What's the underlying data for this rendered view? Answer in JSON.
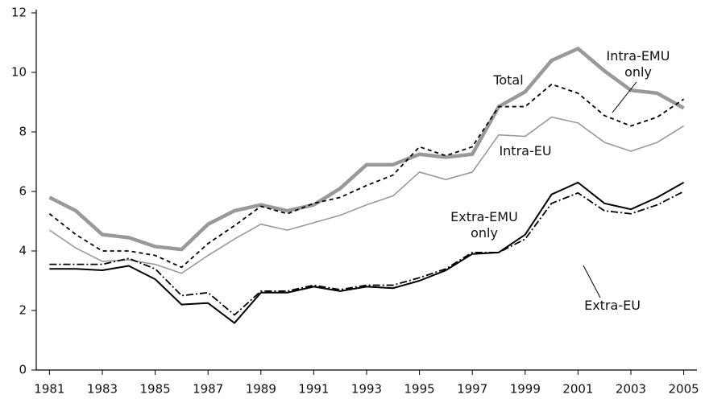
{
  "chart_data": {
    "type": "line",
    "x": [
      1981,
      1982,
      1983,
      1984,
      1985,
      1986,
      1987,
      1988,
      1989,
      1990,
      1991,
      1992,
      1993,
      1994,
      1995,
      1996,
      1997,
      1998,
      1999,
      2000,
      2001,
      2002,
      2003,
      2004,
      2005
    ],
    "xlim": [
      1980.5,
      2005.5
    ],
    "xticks": [
      1981,
      1983,
      1985,
      1987,
      1989,
      1991,
      1993,
      1995,
      1997,
      1999,
      2001,
      2003,
      2005
    ],
    "ylim": [
      0,
      12
    ],
    "yticks": [
      0,
      2,
      4,
      6,
      8,
      10,
      12
    ],
    "series": [
      {
        "name": "Total",
        "color": "#999999",
        "values": [
          5.8,
          5.35,
          4.55,
          4.45,
          4.15,
          4.05,
          4.9,
          5.35,
          5.55,
          5.35,
          5.55,
          6.1,
          6.9,
          6.9,
          7.25,
          7.15,
          7.25,
          8.85,
          9.35,
          10.4,
          10.8,
          10.05,
          9.4,
          9.3,
          8.8
        ]
      },
      {
        "name": "Intra-EMU only",
        "color": "#000000",
        "values": [
          5.25,
          4.55,
          4.0,
          4.0,
          3.85,
          3.45,
          4.25,
          4.85,
          5.5,
          5.25,
          5.6,
          5.8,
          6.2,
          6.55,
          7.5,
          7.2,
          7.5,
          8.85,
          8.85,
          9.6,
          9.3,
          8.55,
          8.2,
          8.5,
          9.1
        ]
      },
      {
        "name": "Intra-EU",
        "color": "#999999",
        "values": [
          4.7,
          4.1,
          3.65,
          3.7,
          3.55,
          3.25,
          3.85,
          4.4,
          4.9,
          4.7,
          4.95,
          5.2,
          5.55,
          5.85,
          6.65,
          6.4,
          6.65,
          7.9,
          7.85,
          8.5,
          8.3,
          7.65,
          7.35,
          7.65,
          8.2
        ]
      },
      {
        "name": "Extra-EMU only",
        "color": "#000000",
        "values": [
          3.4,
          3.4,
          3.35,
          3.5,
          3.05,
          2.2,
          2.25,
          1.58,
          2.6,
          2.6,
          2.8,
          2.65,
          2.8,
          2.75,
          3.0,
          3.35,
          3.9,
          3.95,
          4.55,
          5.9,
          6.3,
          5.6,
          5.4,
          5.8,
          6.3
        ]
      },
      {
        "name": "Extra-EU",
        "color": "#000000",
        "values": [
          3.55,
          3.55,
          3.55,
          3.75,
          3.4,
          2.5,
          2.6,
          1.85,
          2.65,
          2.65,
          2.85,
          2.7,
          2.85,
          2.85,
          3.1,
          3.4,
          3.95,
          3.95,
          4.4,
          5.6,
          5.95,
          5.35,
          5.25,
          5.55,
          6.0
        ]
      }
    ]
  }
}
